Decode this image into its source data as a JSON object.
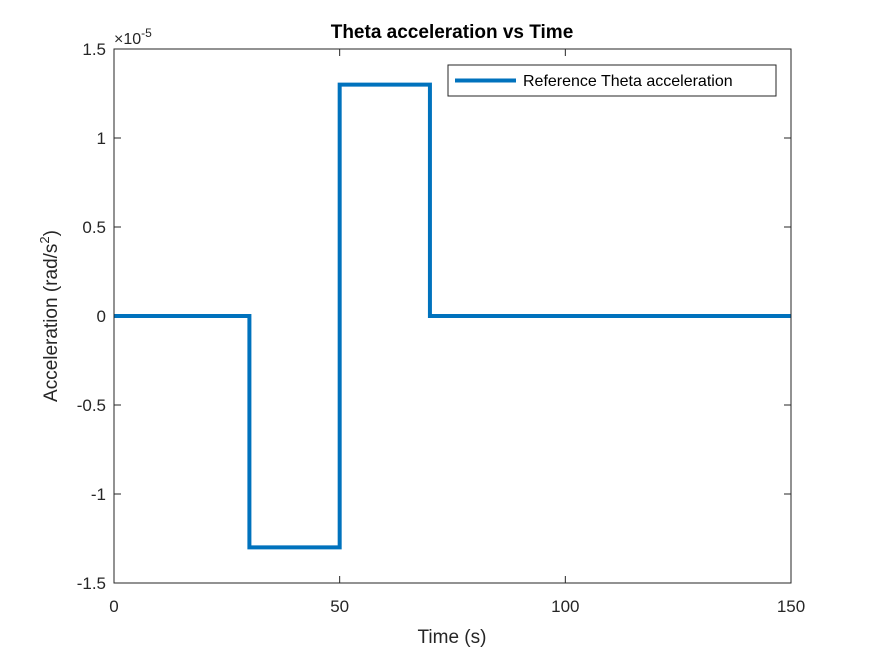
{
  "chart_data": {
    "type": "line",
    "title": "Theta acceleration vs Time",
    "xlabel": "Time (s)",
    "ylabel_main": "Acceleration (rad/s",
    "ylabel_sup": "2",
    "ylabel_end": ")",
    "y_exponent_base": "×10",
    "y_exponent_power": "-5",
    "xlim": [
      0,
      150
    ],
    "ylim": [
      -1.5,
      1.5
    ],
    "x_ticks": [
      0,
      50,
      100,
      150
    ],
    "x_tick_labels": [
      "0",
      "50",
      "100",
      "150"
    ],
    "y_ticks": [
      -1.5,
      -1,
      -0.5,
      0,
      0.5,
      1,
      1.5
    ],
    "y_tick_labels": [
      "-1.5",
      "-1",
      "-0.5",
      "0",
      "0.5",
      "1",
      "1.5"
    ],
    "grid": false,
    "legend_position": "top-right",
    "series": [
      {
        "name": "Reference Theta acceleration",
        "color": "#0072BD",
        "x": [
          0,
          30,
          30,
          50,
          50,
          70,
          70,
          150
        ],
        "y": [
          0,
          0,
          -1.3,
          -1.3,
          1.3,
          1.3,
          0,
          0
        ]
      }
    ]
  }
}
